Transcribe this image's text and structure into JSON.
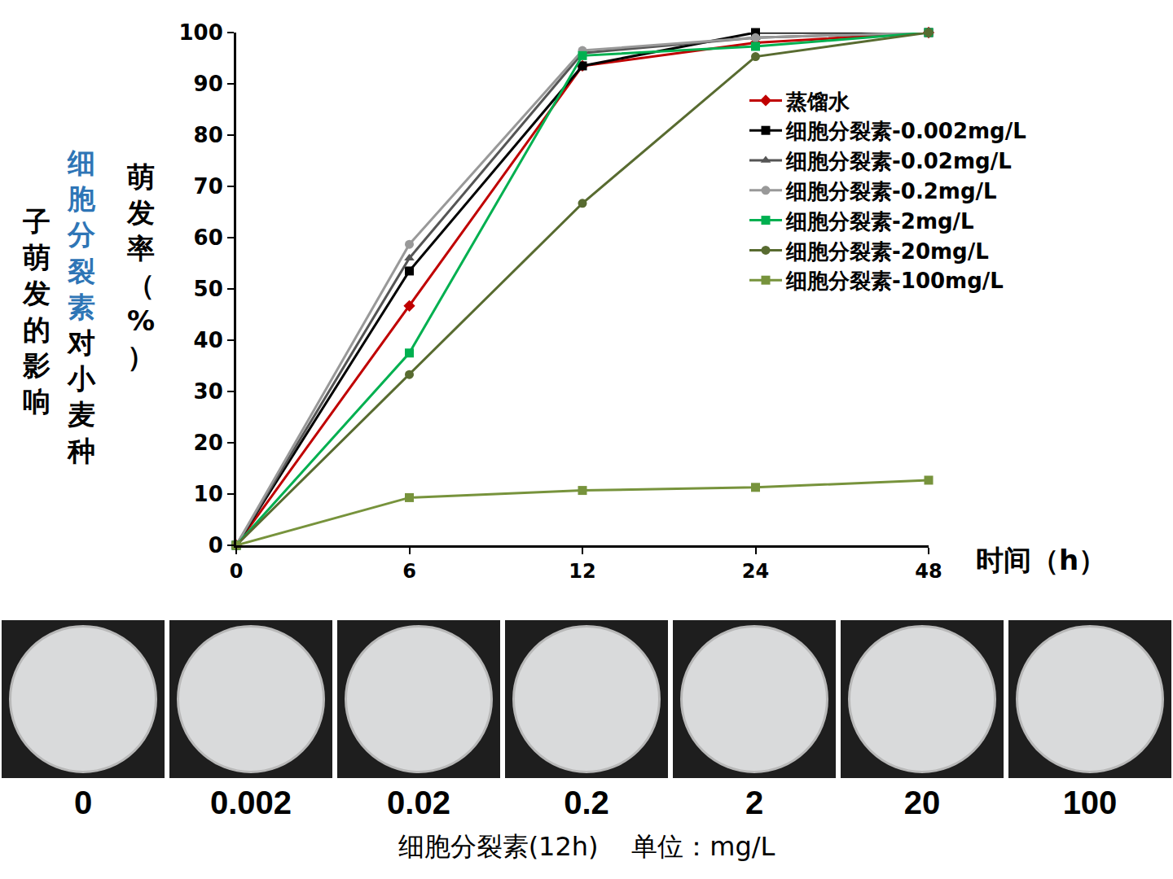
{
  "chart_data": {
    "type": "line",
    "title": [
      {
        "text": "细胞分裂素",
        "color": "#2e75b6"
      },
      {
        "text": "对小麦种子萌发的影响",
        "color": "#000000"
      }
    ],
    "y_label": "萌发率（%）",
    "x_label": "时间（h）",
    "categories": [
      "0",
      "6",
      "12",
      "24",
      "48"
    ],
    "series": [
      {
        "name": "蒸馏水",
        "color": "#c00000",
        "marker": "diamond",
        "line_style": "solid",
        "values": [
          0,
          46.7,
          93.5,
          98,
          100
        ]
      },
      {
        "name": "细胞分裂素-0.002mg/L",
        "color": "#000000",
        "marker": "square",
        "line_style": "solid",
        "values": [
          0,
          53.5,
          93.5,
          100,
          100
        ]
      },
      {
        "name": "细胞分裂素-0.02mg/L",
        "color": "#555555",
        "marker": "triangle-up",
        "line_style": "solid",
        "values": [
          0,
          56,
          96,
          99,
          100
        ]
      },
      {
        "name": "细胞分裂素-0.2mg/L",
        "color": "#999999",
        "marker": "circle",
        "line_style": "solid",
        "values": [
          0,
          58.7,
          96.5,
          99,
          100
        ]
      },
      {
        "name": "细胞分裂素-2mg/L",
        "color": "#00b050",
        "marker": "square",
        "line_style": "solid",
        "values": [
          0,
          37.5,
          95.5,
          97.3,
          100
        ]
      },
      {
        "name": "细胞分裂素-20mg/L",
        "color": "#586b30",
        "marker": "circle",
        "line_style": "solid",
        "values": [
          0,
          33.3,
          66.7,
          95.3,
          100
        ]
      },
      {
        "name": "细胞分裂素-100mg/L",
        "color": "#77933c",
        "marker": "square",
        "line_style": "solid",
        "values": [
          0,
          9.3,
          10.7,
          11.3,
          12.7
        ]
      }
    ],
    "ylim": [
      0,
      100
    ],
    "yticks": [
      0,
      10,
      20,
      30,
      40,
      50,
      60,
      70,
      80,
      90,
      100
    ],
    "grid": false,
    "legend": "upper right"
  },
  "photo_panel": {
    "labels": [
      "0",
      "0.002",
      "0.02",
      "0.2",
      "2",
      "20",
      "100"
    ],
    "caption": "细胞分裂素(12h)    单位：mg/L"
  }
}
